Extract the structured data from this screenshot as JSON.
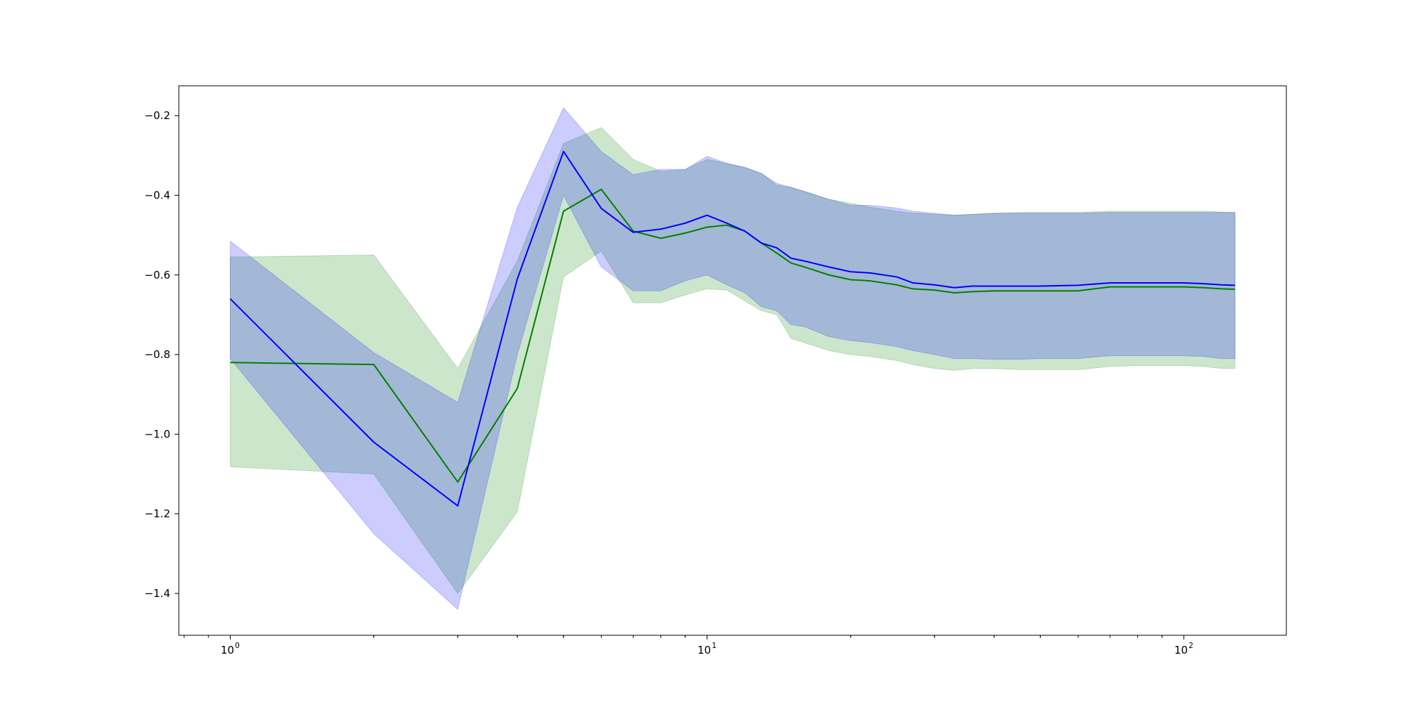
{
  "chart_data": {
    "type": "line",
    "title": "",
    "xlabel": "",
    "ylabel": "",
    "xscale": "log",
    "xlim": [
      0.78,
      164
    ],
    "ylim": [
      -1.505,
      -0.125
    ],
    "grid": false,
    "legend": "none",
    "x_ticks": [
      {
        "value": 1,
        "base": "10",
        "exp": "0"
      },
      {
        "value": 10,
        "base": "10",
        "exp": "1"
      },
      {
        "value": 100,
        "base": "10",
        "exp": "2"
      }
    ],
    "y_ticks": [
      {
        "value": -0.2,
        "label": "−0.2"
      },
      {
        "value": -0.4,
        "label": "−0.4"
      },
      {
        "value": -0.6,
        "label": "−0.6"
      },
      {
        "value": -0.8,
        "label": "−0.8"
      },
      {
        "value": -1.0,
        "label": "−1.0"
      },
      {
        "value": -1.2,
        "label": "−1.2"
      },
      {
        "value": -1.4,
        "label": "−1.4"
      }
    ],
    "series": [
      {
        "color": "#008000",
        "band_color": "#008000",
        "band_opacity": 0.2,
        "x": [
          1,
          2,
          3,
          4,
          5,
          6,
          7,
          8,
          9,
          10,
          11,
          12,
          13,
          14,
          15,
          16,
          18,
          20,
          22,
          25,
          27,
          30,
          33,
          36,
          40,
          45,
          50,
          60,
          70,
          80,
          100,
          110,
          120,
          128
        ],
        "mean": [
          -0.82,
          -0.825,
          -1.12,
          -0.885,
          -0.44,
          -0.385,
          -0.49,
          -0.508,
          -0.495,
          -0.48,
          -0.475,
          -0.49,
          -0.52,
          -0.545,
          -0.57,
          -0.58,
          -0.6,
          -0.612,
          -0.615,
          -0.625,
          -0.635,
          -0.638,
          -0.645,
          -0.642,
          -0.64,
          -0.64,
          -0.64,
          -0.64,
          -0.63,
          -0.63,
          -0.63,
          -0.632,
          -0.635,
          -0.636
        ],
        "lower": [
          -1.082,
          -1.1,
          -1.4,
          -1.195,
          -0.605,
          -0.54,
          -0.67,
          -0.67,
          -0.65,
          -0.635,
          -0.638,
          -0.665,
          -0.69,
          -0.7,
          -0.76,
          -0.77,
          -0.79,
          -0.8,
          -0.805,
          -0.815,
          -0.825,
          -0.835,
          -0.84,
          -0.835,
          -0.835,
          -0.838,
          -0.838,
          -0.838,
          -0.83,
          -0.828,
          -0.828,
          -0.83,
          -0.835,
          -0.835
        ],
        "upper": [
          -0.555,
          -0.55,
          -0.835,
          -0.565,
          -0.27,
          -0.23,
          -0.31,
          -0.34,
          -0.335,
          -0.31,
          -0.32,
          -0.33,
          -0.345,
          -0.375,
          -0.38,
          -0.39,
          -0.41,
          -0.42,
          -0.43,
          -0.44,
          -0.445,
          -0.448,
          -0.45,
          -0.448,
          -0.445,
          -0.443,
          -0.443,
          -0.443,
          -0.44,
          -0.44,
          -0.44,
          -0.44,
          -0.442,
          -0.443
        ]
      },
      {
        "color": "#0000ff",
        "band_color": "#0000ff",
        "band_opacity": 0.2,
        "x": [
          1,
          2,
          3,
          4,
          5,
          6,
          7,
          8,
          9,
          10,
          11,
          12,
          13,
          14,
          15,
          16,
          18,
          20,
          22,
          25,
          27,
          30,
          33,
          36,
          40,
          45,
          50,
          60,
          70,
          80,
          100,
          110,
          120,
          128
        ],
        "mean": [
          -0.66,
          -1.02,
          -1.18,
          -0.61,
          -0.29,
          -0.433,
          -0.493,
          -0.485,
          -0.47,
          -0.45,
          -0.47,
          -0.49,
          -0.52,
          -0.532,
          -0.558,
          -0.565,
          -0.58,
          -0.592,
          -0.595,
          -0.605,
          -0.62,
          -0.625,
          -0.632,
          -0.628,
          -0.628,
          -0.628,
          -0.628,
          -0.626,
          -0.62,
          -0.62,
          -0.62,
          -0.622,
          -0.625,
          -0.626
        ],
        "lower": [
          -0.81,
          -1.25,
          -1.44,
          -0.8,
          -0.4,
          -0.58,
          -0.64,
          -0.64,
          -0.615,
          -0.6,
          -0.625,
          -0.645,
          -0.68,
          -0.69,
          -0.725,
          -0.73,
          -0.755,
          -0.765,
          -0.77,
          -0.78,
          -0.79,
          -0.8,
          -0.81,
          -0.81,
          -0.812,
          -0.812,
          -0.81,
          -0.81,
          -0.803,
          -0.803,
          -0.803,
          -0.805,
          -0.81,
          -0.81
        ],
        "upper": [
          -0.515,
          -0.795,
          -0.92,
          -0.43,
          -0.18,
          -0.29,
          -0.348,
          -0.335,
          -0.335,
          -0.302,
          -0.32,
          -0.33,
          -0.345,
          -0.37,
          -0.38,
          -0.39,
          -0.41,
          -0.425,
          -0.425,
          -0.432,
          -0.44,
          -0.445,
          -0.45,
          -0.448,
          -0.445,
          -0.445,
          -0.445,
          -0.445,
          -0.443,
          -0.443,
          -0.443,
          -0.443,
          -0.443,
          -0.443
        ]
      }
    ]
  }
}
